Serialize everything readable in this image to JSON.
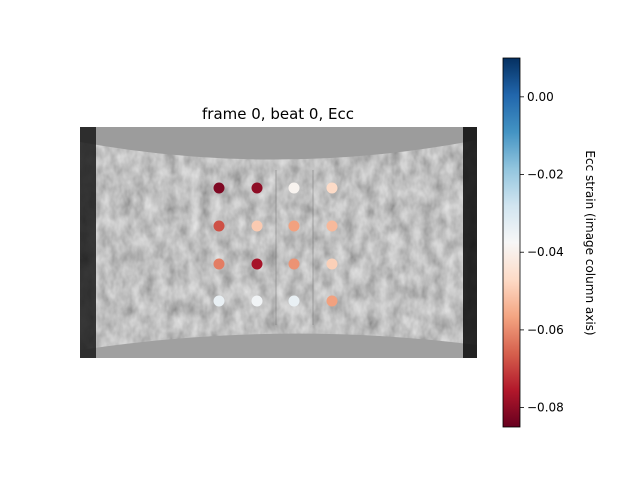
{
  "chart_data": {
    "type": "scatter",
    "title": "frame 0, beat 0, Ecc",
    "background": "grayscale microscopy image of fibrous tissue",
    "x": [
      219,
      257,
      294,
      332
    ],
    "y": [
      188,
      226,
      264,
      301
    ],
    "values": [
      [
        -0.082,
        -0.08,
        -0.039,
        -0.047
      ],
      [
        -0.068,
        -0.05,
        -0.057,
        -0.053
      ],
      [
        -0.062,
        -0.077,
        -0.059,
        -0.049
      ],
      [
        -0.034,
        -0.036,
        -0.034,
        -0.057
      ]
    ],
    "colorbar": {
      "label": "Ecc strain (image column axis)",
      "vmin": -0.085,
      "vmax": 0.01,
      "colormap": "RdBu",
      "ticks": [
        -0.08,
        -0.06,
        -0.04,
        -0.02,
        0.0
      ],
      "tick_labels": [
        "−0.08",
        "−0.06",
        "−0.04",
        "−0.02",
        "0.00"
      ]
    }
  }
}
